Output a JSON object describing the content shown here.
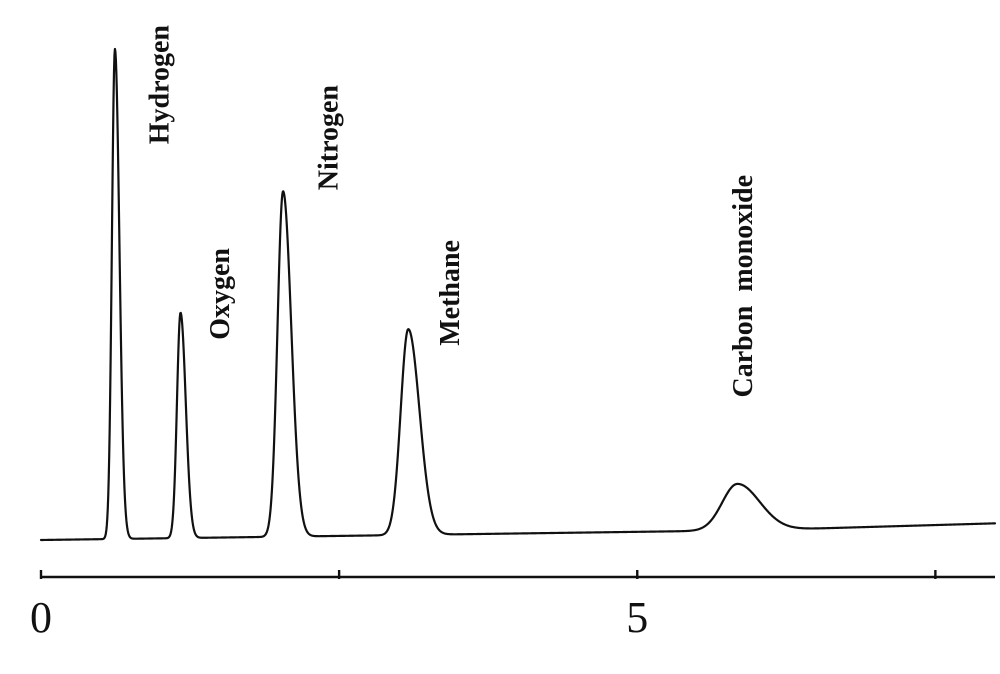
{
  "chart_data": {
    "type": "line",
    "title": "",
    "xlabel": "",
    "ylabel": "",
    "xlim": [
      0,
      8
    ],
    "ylim": [
      0,
      1
    ],
    "grid": false,
    "x_ticks": [
      {
        "value": 0,
        "label": "0"
      },
      {
        "value": 2.5,
        "label": ""
      },
      {
        "value": 5,
        "label": "5"
      },
      {
        "value": 7.5,
        "label": ""
      }
    ],
    "baseline": [
      {
        "x": 0,
        "y": 0.0
      },
      {
        "x": 1.5,
        "y": 0.005
      },
      {
        "x": 3.0,
        "y": 0.01
      },
      {
        "x": 4.5,
        "y": 0.015
      },
      {
        "x": 6.0,
        "y": 0.02
      },
      {
        "x": 8.0,
        "y": 0.034
      }
    ],
    "peaks": [
      {
        "name": "Hydrogen",
        "x": 0.62,
        "height": 1.0,
        "width": 0.03
      },
      {
        "name": "Oxygen",
        "x": 1.17,
        "height": 0.46,
        "width": 0.035
      },
      {
        "name": "Nitrogen",
        "x": 2.03,
        "height": 0.705,
        "width": 0.055
      },
      {
        "name": "Methane",
        "x": 3.08,
        "height": 0.42,
        "width": 0.075
      },
      {
        "name": "Carbon  monoxide",
        "x": 5.84,
        "height": 0.095,
        "width": 0.15
      }
    ]
  }
}
